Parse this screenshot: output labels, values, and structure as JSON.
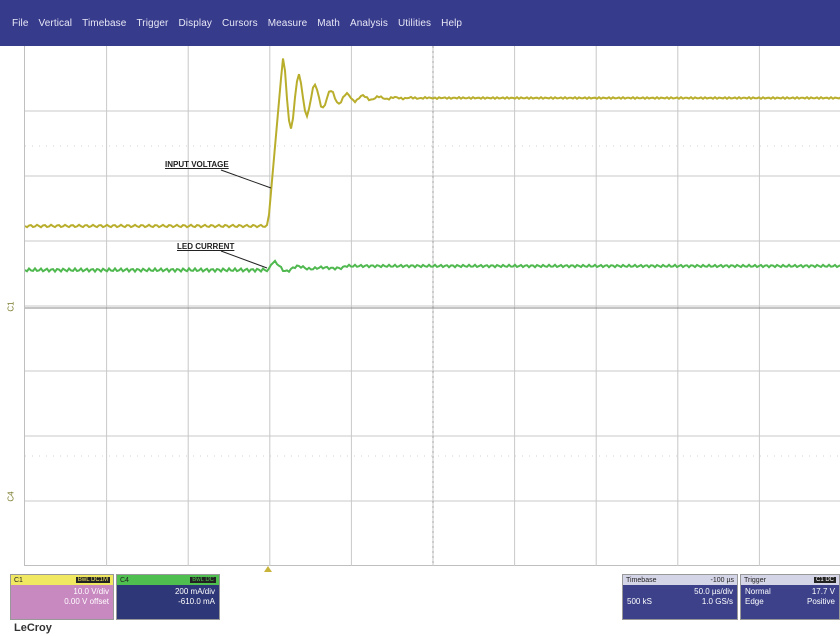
{
  "menu": [
    "File",
    "Vertical",
    "Timebase",
    "Trigger",
    "Display",
    "Cursors",
    "Measure",
    "Math",
    "Analysis",
    "Utilities",
    "Help"
  ],
  "annotations": {
    "input_voltage": "INPUT VOLTAGE",
    "led_current": "LED CURRENT"
  },
  "channel_markers": {
    "c1": "C1",
    "c4": "C4"
  },
  "colors": {
    "menubar": "#373b8c",
    "trace_c1": "#b9ae2c",
    "trace_c4": "#4fb84f",
    "grid": "#c8c8c8"
  },
  "descriptors": {
    "c1": {
      "name": "C1",
      "tag": "BwL DC1M",
      "line1": "10.0 V/div",
      "line2": "0.00 V offset"
    },
    "c4": {
      "name": "C4",
      "tag": "BwL DC",
      "line1": "200 mA/div",
      "line2": "-610.0 mA"
    },
    "timebase": {
      "name": "Timebase",
      "value": "-100 µs",
      "row1_right": "50.0 µs/div",
      "row2_left": "500 kS",
      "row2_right": "1.0 GS/s"
    },
    "trigger": {
      "name": "Trigger",
      "tag": "C1 DC",
      "row1_left": "Normal",
      "row1_right": "17.7 V",
      "row2_left": "Edge",
      "row2_right": "Positive"
    }
  },
  "brand": "LeCroy"
}
